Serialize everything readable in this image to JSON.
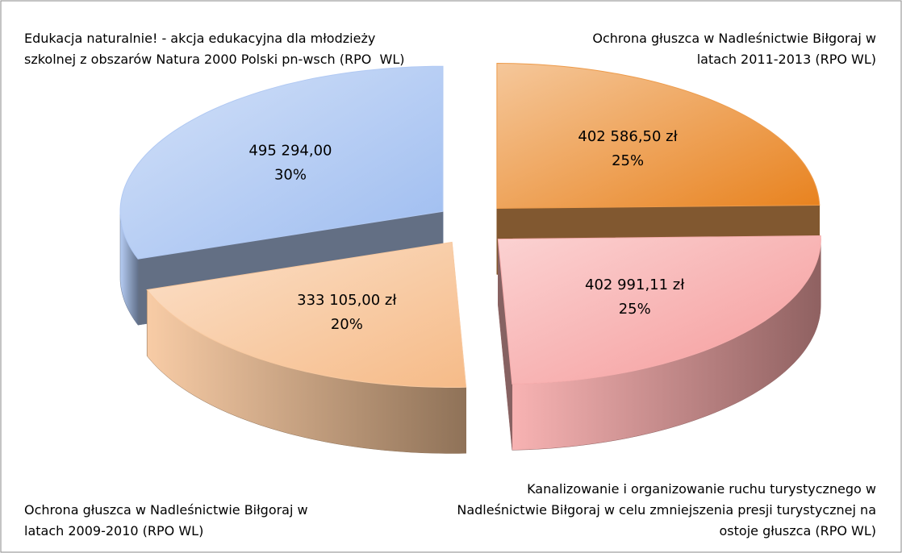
{
  "chart_data": {
    "type": "pie",
    "categories": [
      "Ochrona głuszca w Nadleśnictwie Biłgoraj w latach 2011-2013 (RPO WL)",
      "Kanalizowanie i organizowanie ruchu turystycznego w Nadleśnictwie Biłgoraj w celu zmniejszenia presji turystycznej na ostoje głuszca (RPO WL)",
      "Ochrona głuszca w Nadleśnictwie Biłgoraj w latach 2009-2010 (RPO WL)",
      "Edukacja naturalnie! - akcja edukacyjna dla młodzieży szkolnej z obszarów Natura 2000 Polski pn-wsch (RPO  WL)"
    ],
    "values": [
      402586.5,
      402991.11,
      333105,
      495294
    ],
    "value_labels": [
      "402 586,50 zł",
      "402 991,11 zł",
      "333 105,00 zł",
      "495 294,00"
    ],
    "percent_labels": [
      "25%",
      "25%",
      "20%",
      "30%"
    ],
    "colors": [
      "#e8821e",
      "#f59a9a",
      "#f6bb88",
      "#9dbcf0"
    ]
  }
}
